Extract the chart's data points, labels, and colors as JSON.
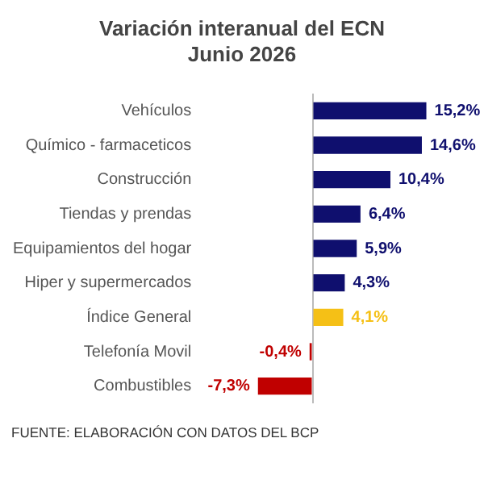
{
  "chart_data": {
    "type": "bar",
    "orientation": "horizontal",
    "title": "Variación interanual del ECN\nJunio 2026",
    "categories": [
      "Vehículos",
      "Químico - farmaceticos",
      "Construcción",
      "Tiendas y prendas",
      "Equipamientos del hogar",
      "Hiper y supermercados",
      "Índice General",
      "Telefonía Movil",
      "Combustibles"
    ],
    "values": [
      15.2,
      14.6,
      10.4,
      6.4,
      5.9,
      4.3,
      4.1,
      -0.4,
      -7.3
    ],
    "colors": [
      "#0f0f6e",
      "#0f0f6e",
      "#0f0f6e",
      "#0f0f6e",
      "#0f0f6e",
      "#0f0f6e",
      "#f5c016",
      "#c00000",
      "#c00000"
    ],
    "value_labels": [
      "15,2%",
      "14,6%",
      "10,4%",
      "6,4%",
      "5,9%",
      "4,3%",
      "4,1%",
      "-0,4%",
      "-7,3%"
    ],
    "tick_labels": "y",
    "grid": false,
    "legend": false,
    "annotations": [
      "FUENTE: ELABORACIÓN CON DATOS DEL BCP"
    ]
  }
}
